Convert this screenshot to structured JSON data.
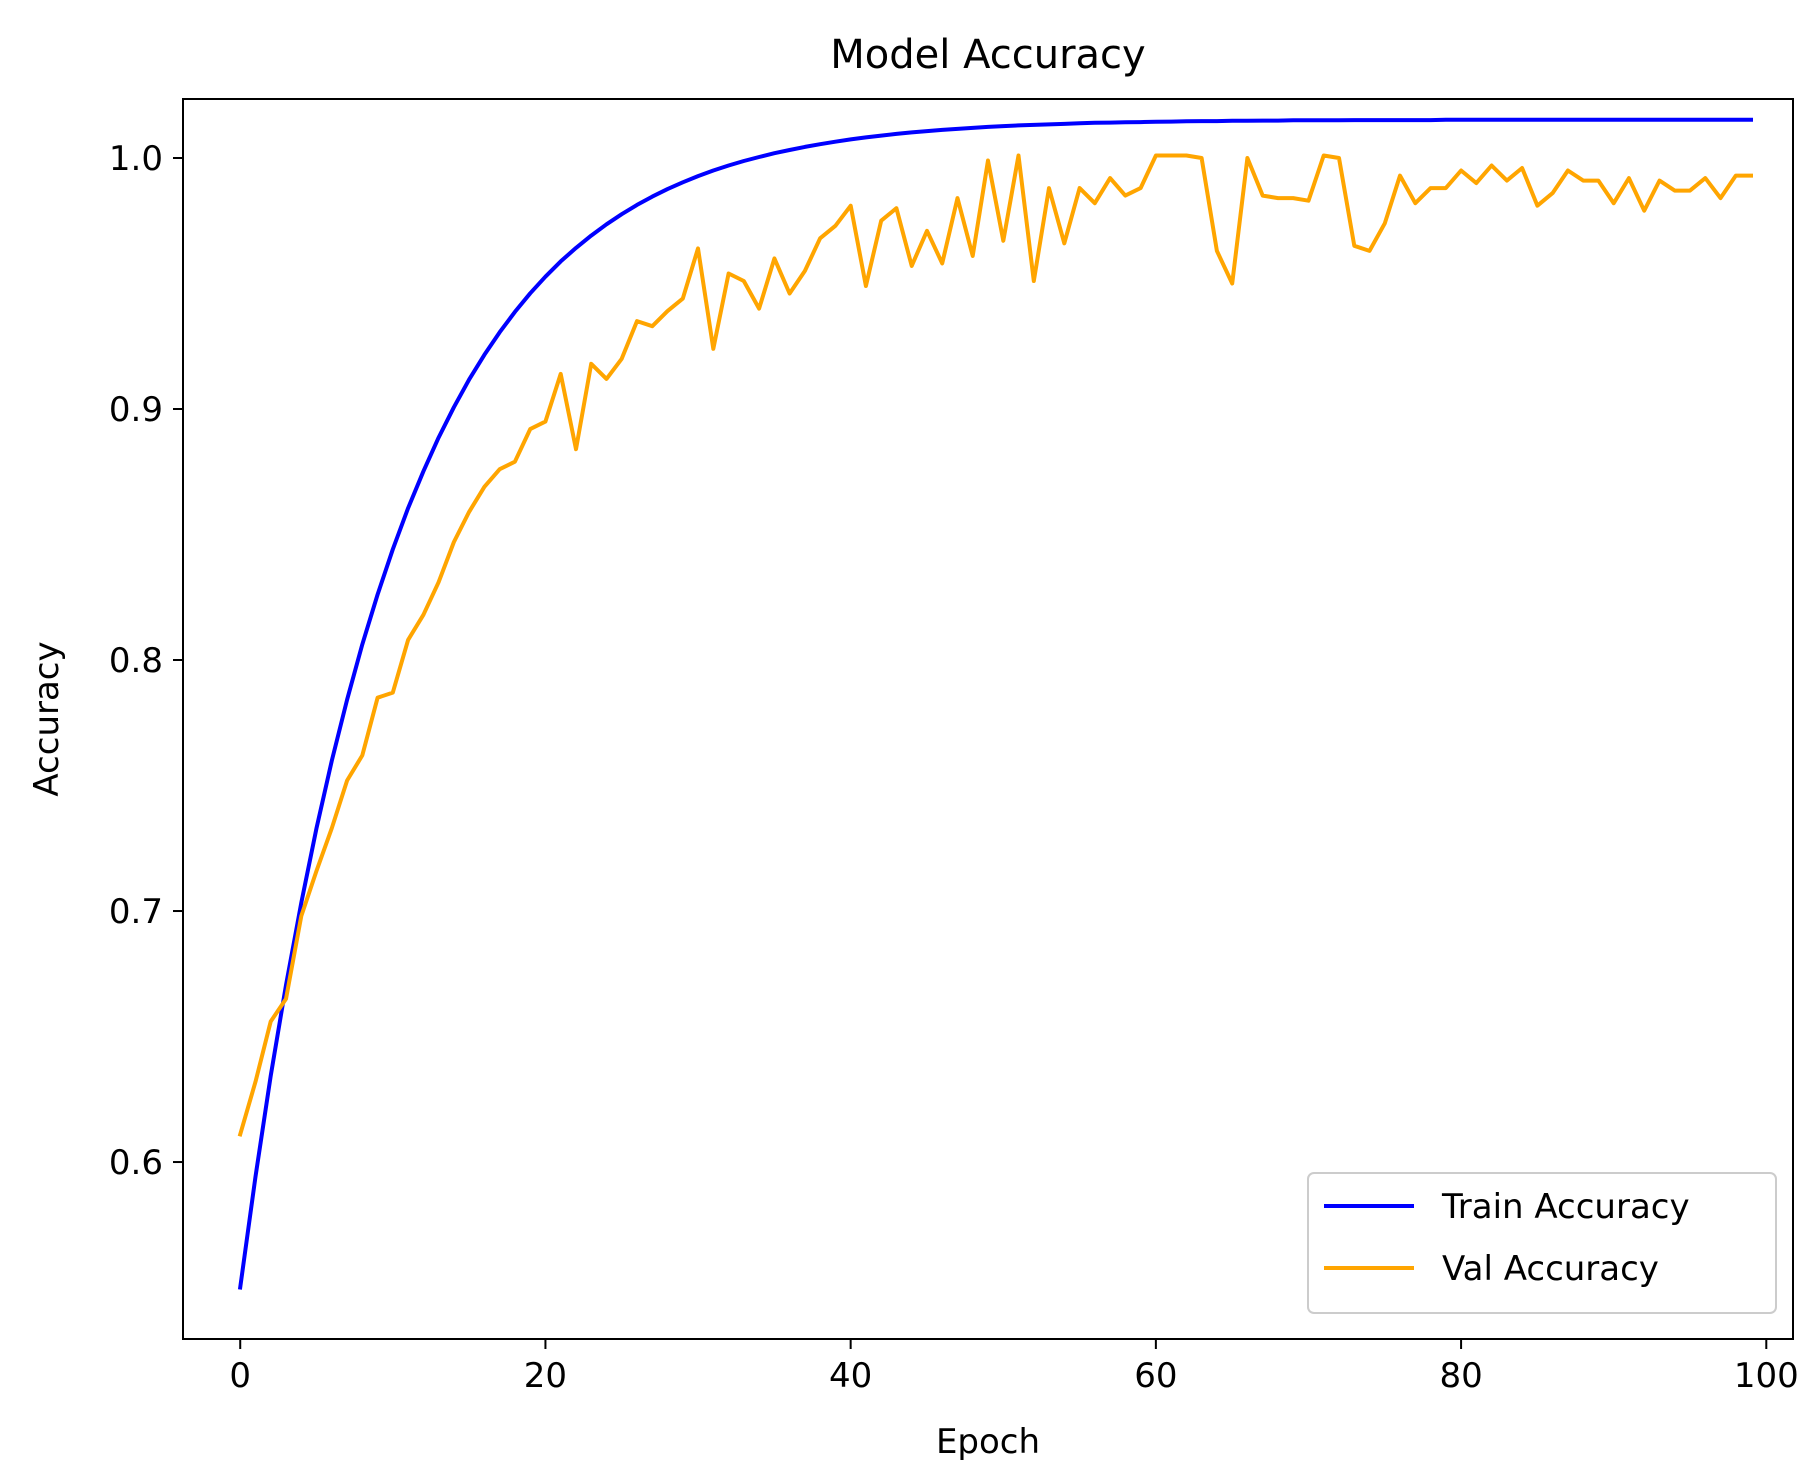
{
  "chart_data": {
    "type": "line",
    "title": "Model Accuracy",
    "xlabel": "Epoch",
    "ylabel": "Accuracy",
    "xlim": [
      -3.75,
      101.75
    ],
    "ylim": [
      0.5295,
      1.0235
    ],
    "x_ticks": [
      0,
      20,
      40,
      60,
      80,
      100
    ],
    "y_ticks": [
      0.6,
      0.7,
      0.8,
      0.9,
      1.0
    ],
    "x_tick_labels": [
      "0",
      "20",
      "40",
      "60",
      "80",
      "100"
    ],
    "y_tick_labels": [
      "0.6",
      "0.7",
      "0.8",
      "0.9",
      "1.0"
    ],
    "grid": false,
    "legend_position": "lower right",
    "x": [
      0,
      1,
      2,
      3,
      4,
      5,
      6,
      7,
      8,
      9,
      10,
      11,
      12,
      13,
      14,
      15,
      16,
      17,
      18,
      19,
      20,
      21,
      22,
      23,
      24,
      25,
      26,
      27,
      28,
      29,
      30,
      31,
      32,
      33,
      34,
      35,
      36,
      37,
      38,
      39,
      40,
      41,
      42,
      43,
      44,
      45,
      46,
      47,
      48,
      49,
      50,
      51,
      52,
      53,
      54,
      55,
      56,
      57,
      58,
      59,
      60,
      61,
      62,
      63,
      64,
      65,
      66,
      67,
      68,
      69,
      70,
      71,
      72,
      73,
      74,
      75,
      76,
      77,
      78,
      79,
      80,
      81,
      82,
      83,
      84,
      85,
      86,
      87,
      88,
      89,
      90,
      91,
      92,
      93,
      94,
      95,
      96,
      97,
      98,
      99
    ],
    "series": [
      {
        "name": "Train Accuracy",
        "color": "#0000ff",
        "values": [
          0.55,
          0.5942,
          0.6343,
          0.6705,
          0.7033,
          0.733,
          0.7599,
          0.7842,
          0.8062,
          0.8261,
          0.8441,
          0.8605,
          0.8752,
          0.8886,
          0.9007,
          0.9117,
          0.9216,
          0.9306,
          0.9387,
          0.9461,
          0.9527,
          0.9588,
          0.9642,
          0.9691,
          0.9736,
          0.9776,
          0.9813,
          0.9846,
          0.9876,
          0.9903,
          0.9928,
          0.995,
          0.997,
          0.9988,
          1.0004,
          1.0019,
          1.0032,
          1.0044,
          1.0055,
          1.0065,
          1.0074,
          1.0082,
          1.0089,
          1.0096,
          1.0102,
          1.0107,
          1.0112,
          1.0116,
          1.012,
          1.0124,
          1.0127,
          1.013,
          1.0132,
          1.0134,
          1.0136,
          1.0138,
          1.014,
          1.0141,
          1.0142,
          1.0143,
          1.0144,
          1.0145,
          1.0146,
          1.0147,
          1.0147,
          1.0148,
          1.0148,
          1.0149,
          1.0149,
          1.015,
          1.015,
          1.015,
          1.015,
          1.0151,
          1.0151,
          1.0151,
          1.0151,
          1.0151,
          1.0151,
          1.0152,
          1.0152,
          1.0152,
          1.0152,
          1.0152,
          1.0152,
          1.0152,
          1.0152,
          1.0152,
          1.0152,
          1.0152,
          1.0152,
          1.0152,
          1.0152,
          1.0152,
          1.0152,
          1.0152,
          1.0152,
          1.0152,
          1.0152,
          1.0152
        ]
      },
      {
        "name": "Val Accuracy",
        "color": "#ffa500",
        "values": [
          0.611,
          0.632,
          0.656,
          0.665,
          0.698,
          0.716,
          0.733,
          0.752,
          0.762,
          0.785,
          0.787,
          0.808,
          0.818,
          0.831,
          0.847,
          0.859,
          0.869,
          0.876,
          0.879,
          0.892,
          0.895,
          0.914,
          0.884,
          0.918,
          0.912,
          0.92,
          0.935,
          0.933,
          0.939,
          0.944,
          0.964,
          0.924,
          0.954,
          0.951,
          0.94,
          0.96,
          0.946,
          0.955,
          0.968,
          0.973,
          0.981,
          0.949,
          0.975,
          0.98,
          0.957,
          0.971,
          0.958,
          0.984,
          0.961,
          0.999,
          0.967,
          1.001,
          0.951,
          0.988,
          0.966,
          0.988,
          0.982,
          0.992,
          0.985,
          0.988,
          1.001,
          1.001,
          1.001,
          1.0,
          0.963,
          0.95,
          1.0,
          0.985,
          0.984,
          0.984,
          0.983,
          1.001,
          1.0,
          0.965,
          0.963,
          0.974,
          0.993,
          0.982,
          0.988,
          0.988,
          0.995,
          0.99,
          0.997,
          0.991,
          0.996,
          0.981,
          0.986,
          0.995,
          0.991,
          0.991,
          0.982,
          0.992,
          0.979,
          0.991,
          0.987,
          0.987,
          0.992,
          0.984,
          0.993,
          0.993
        ]
      }
    ]
  }
}
